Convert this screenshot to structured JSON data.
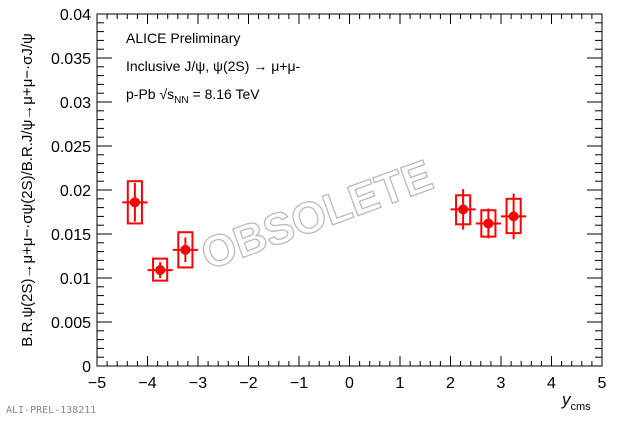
{
  "chart_data": {
    "type": "scatter",
    "title": "",
    "xlabel": "y",
    "xlabel_sub": "cms",
    "ylabel": "B.R.ψ(2S)→μ+μ−·σψ(2S)/B.R.J/ψ→μ+μ−·σJ/ψ",
    "xlim": [
      -5,
      5
    ],
    "ylim": [
      0,
      0.04
    ],
    "xticks": [
      -5,
      -4,
      -3,
      -2,
      -1,
      0,
      1,
      2,
      3,
      4,
      5
    ],
    "xtick_labels": [
      "−5",
      "−4",
      "−3",
      "−2",
      "−1",
      "0",
      "1",
      "2",
      "3",
      "4",
      "5"
    ],
    "yticks": [
      0,
      0.005,
      0.01,
      0.015,
      0.02,
      0.025,
      0.03,
      0.035,
      0.04
    ],
    "ytick_labels": [
      "0",
      "0.005",
      "0.01",
      "0.015",
      "0.02",
      "0.025",
      "0.03",
      "0.035",
      "0.04"
    ],
    "grid": false,
    "color": "#ff0000",
    "series": [
      {
        "points": [
          {
            "x": -4.25,
            "xerr": 0.25,
            "y": 0.0186,
            "stat_err": 0.0022,
            "box_lo": 0.0162,
            "box_hi": 0.021,
            "box_halfwidth": 0.14
          },
          {
            "x": -3.75,
            "xerr": 0.25,
            "y": 0.0109,
            "stat_err": 0.0009,
            "box_lo": 0.0097,
            "box_hi": 0.0122,
            "box_halfwidth": 0.14
          },
          {
            "x": -3.25,
            "xerr": 0.25,
            "y": 0.0132,
            "stat_err": 0.0014,
            "box_lo": 0.0112,
            "box_hi": 0.0152,
            "box_halfwidth": 0.14
          },
          {
            "x": 2.25,
            "xerr": 0.25,
            "y": 0.0178,
            "stat_err": 0.0023,
            "box_lo": 0.0161,
            "box_hi": 0.0194,
            "box_halfwidth": 0.14
          },
          {
            "x": 2.75,
            "xerr": 0.25,
            "y": 0.0162,
            "stat_err": 0.0017,
            "box_lo": 0.0147,
            "box_hi": 0.0177,
            "box_halfwidth": 0.14
          },
          {
            "x": 3.25,
            "xerr": 0.25,
            "y": 0.017,
            "stat_err": 0.0026,
            "box_lo": 0.0151,
            "box_hi": 0.019,
            "box_halfwidth": 0.14
          }
        ]
      }
    ],
    "annotations": {
      "line1": "ALICE Preliminary",
      "line2": "Inclusive J/ψ, ψ(2S) → μ+μ-",
      "line3_prefix": "p-Pb √s",
      "line3_sub": "NN",
      "line3_suffix": " = 8.16 TeV",
      "watermark": "OBSOLETE",
      "figure_id": "ALI-PREL-138211"
    }
  }
}
